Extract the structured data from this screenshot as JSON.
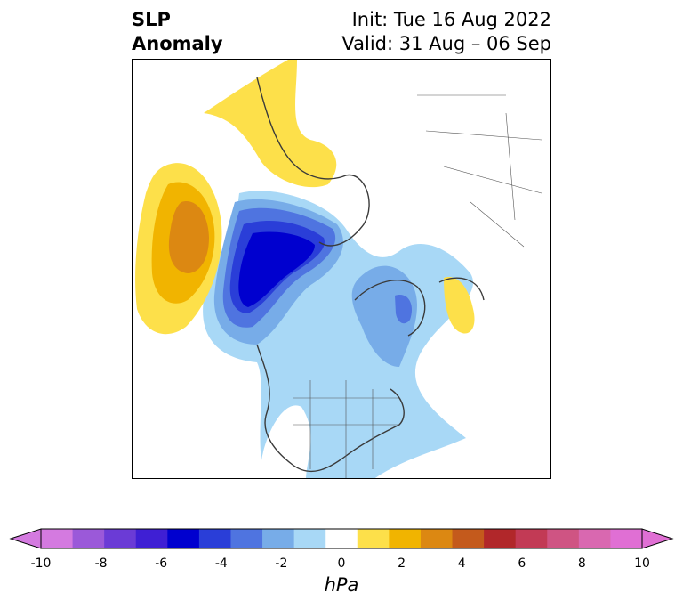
{
  "title": {
    "left_line1": "SLP",
    "left_line2": "Anomaly",
    "right_line1": "Init: Tue 16 Aug 2022",
    "right_line2": "Valid: 31 Aug – 06 Sep"
  },
  "colorbar": {
    "unit": "hPa",
    "ticks": [
      "-10",
      "-8",
      "-6",
      "-4",
      "-2",
      "0",
      "2",
      "4",
      "6",
      "8",
      "10"
    ],
    "colors": [
      "#d47ae0",
      "#9b59d9",
      "#6b3bd6",
      "#3f1fd4",
      "#0000cf",
      "#2a3ed8",
      "#4f74e0",
      "#77ace8",
      "#a8d8f6",
      "#ffffff",
      "#fde04a",
      "#f1b400",
      "#dc8812",
      "#c45a1c",
      "#b1272a",
      "#c23a55",
      "#cf5483",
      "#d968b0",
      "#e06fd4"
    ],
    "min_color": "#d47ae0",
    "max_color": "#e06fd4"
  },
  "map": {
    "projection": "polar-stereographic-north",
    "field": "sea-level-pressure-anomaly"
  }
}
